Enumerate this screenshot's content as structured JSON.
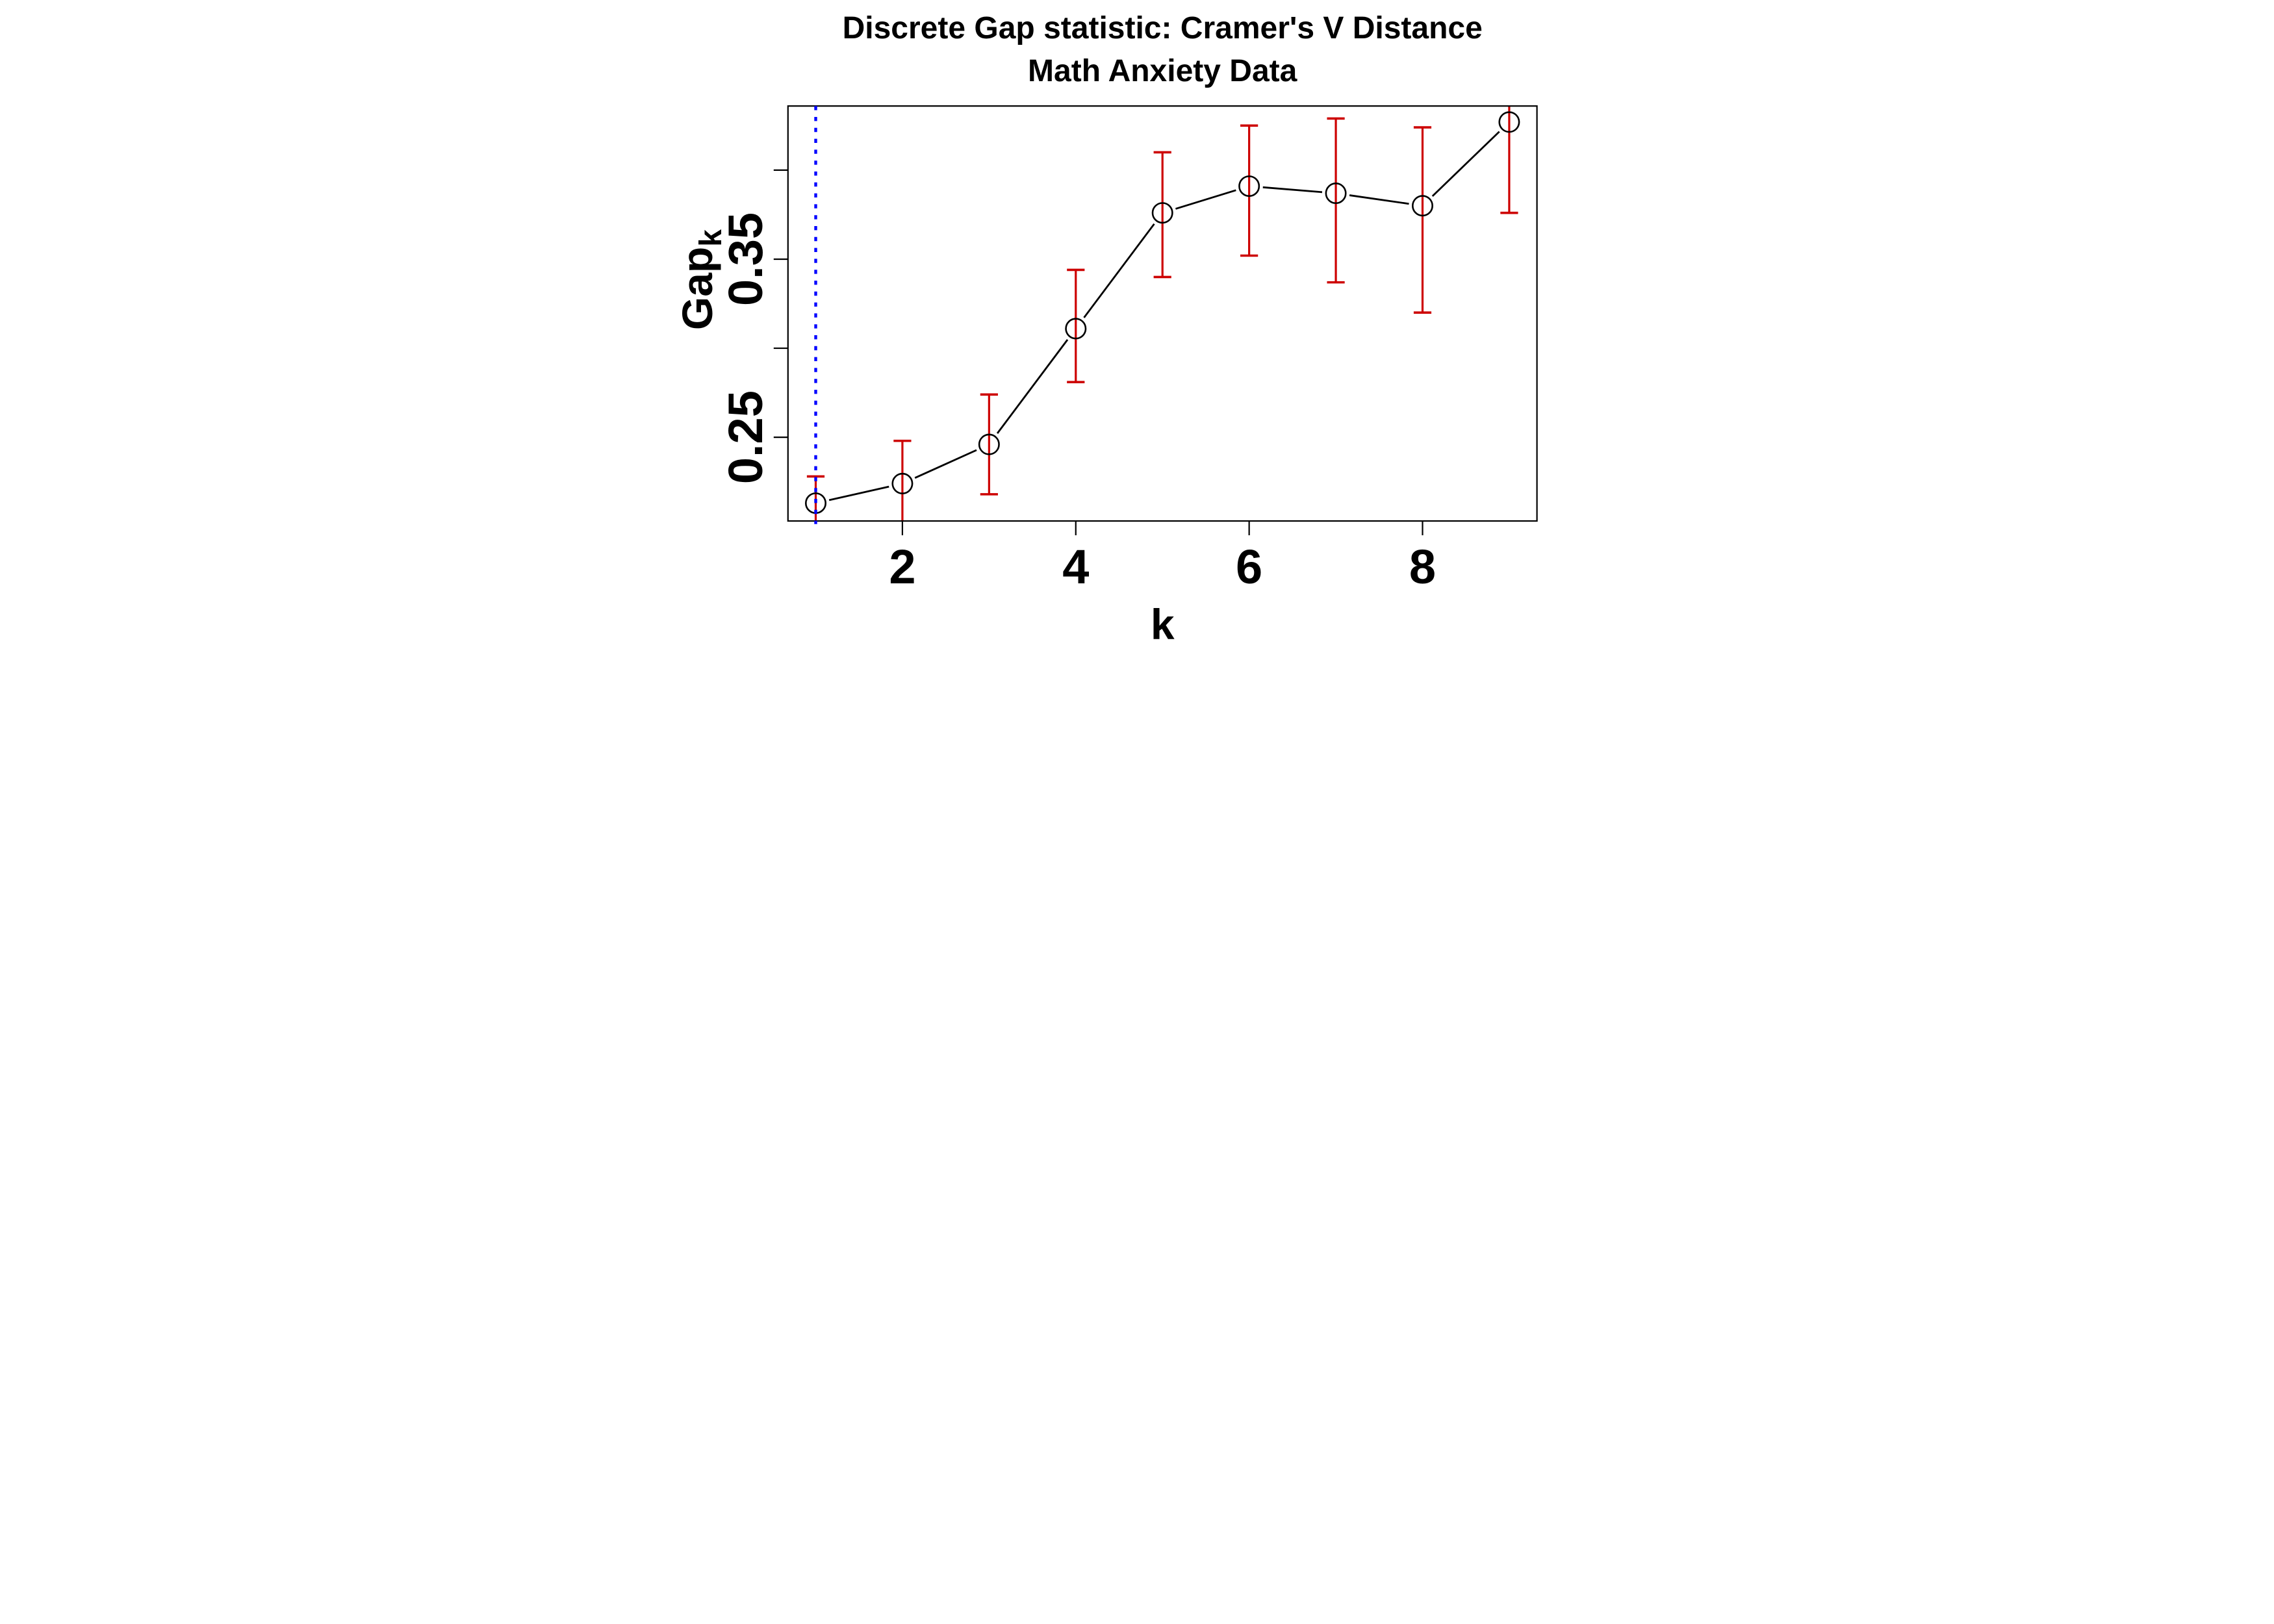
{
  "figure": {
    "background": "#FFFFFF"
  },
  "chart_data": {
    "type": "line",
    "title": "Discrete Gap statistic: Cramer's V Distance",
    "subtitle": "Math Anxiety Data",
    "xlabel": "k",
    "ylabel": "Gap",
    "ylabel_subscript": "k",
    "x": [
      1,
      2,
      3,
      4,
      5,
      6,
      7,
      8,
      9
    ],
    "series": [
      {
        "name": "Gap statistic",
        "values": [
          0.213,
          0.224,
          0.246,
          0.311,
          0.376,
          0.391,
          0.387,
          0.38,
          0.427
        ],
        "marker": "open-circle",
        "color": "#000000",
        "line_style": "solid-between-points"
      }
    ],
    "error_bars": {
      "color": "#CD0000",
      "upper": [
        0.228,
        0.248,
        0.274,
        0.344,
        0.41,
        0.425,
        0.429,
        0.424,
        null
      ],
      "lower": [
        null,
        null,
        0.218,
        0.281,
        0.34,
        0.352,
        0.337,
        0.32,
        0.376
      ],
      "note_null": "null = whisker clipped at plot region edge, no cap drawn"
    },
    "reference_line": {
      "orientation": "vertical",
      "x": 1,
      "style": "dotted",
      "color": "#0000FF"
    },
    "x_ticks": [
      2,
      4,
      6,
      8
    ],
    "x_tick_labels": [
      "2",
      "4",
      "6",
      "8"
    ],
    "y_ticks": [
      0.25,
      0.3,
      0.35,
      0.4
    ],
    "y_tick_labels": {
      "0.25": "0.25",
      "0.35": "0.35"
    },
    "xlim": [
      0.68,
      9.32
    ],
    "ylim": [
      0.203,
      0.436
    ],
    "grid": false,
    "legend": null,
    "colors": {
      "axis": "#000000",
      "marker": "#000000",
      "error_bar": "#CD0000",
      "reference_line": "#0000FF",
      "background": "#FFFFFF"
    }
  }
}
